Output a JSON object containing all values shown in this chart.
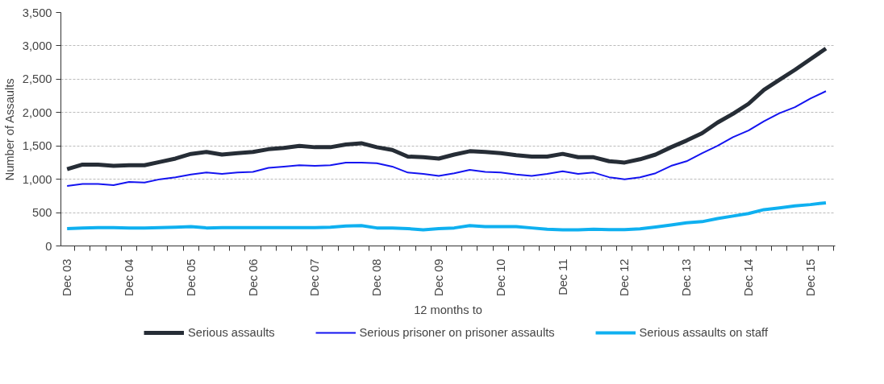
{
  "chart_data": {
    "type": "line",
    "xlabel": "12 months to",
    "ylabel": "Number of Assaults",
    "categories": [
      "Dec 03",
      null,
      null,
      null,
      "Dec 04",
      null,
      null,
      null,
      "Dec 05",
      null,
      null,
      null,
      "Dec 06",
      null,
      null,
      null,
      "Dec 07",
      null,
      null,
      null,
      "Dec 08",
      null,
      null,
      null,
      "Dec 09",
      null,
      null,
      null,
      "Dec 10",
      null,
      null,
      null,
      "Dec 11",
      null,
      null,
      null,
      "Dec 12",
      null,
      null,
      null,
      "Dec 13",
      null,
      null,
      null,
      "Dec 14",
      null,
      null,
      null,
      "Dec 15",
      null
    ],
    "ylim": [
      0,
      3500
    ],
    "yticks": [
      0,
      500,
      {
        "value": 1000,
        "label": "1,000"
      },
      {
        "value": 1500,
        "label": "1,500"
      },
      {
        "value": 2000,
        "label": "2,000"
      },
      {
        "value": 2500,
        "label": "2,500"
      },
      {
        "value": 3000,
        "label": "3,000"
      },
      {
        "value": 3500,
        "label": "3,500"
      }
    ],
    "grid": "y",
    "legend": "bottom",
    "marker": "none",
    "line_style": "solid",
    "series": [
      {
        "name": "Serious assaults",
        "color": "#262d36",
        "values": [
          1150,
          1220,
          1220,
          1200,
          1210,
          1210,
          1260,
          1310,
          1380,
          1410,
          1370,
          1390,
          1410,
          1450,
          1470,
          1500,
          1480,
          1480,
          1520,
          1540,
          1480,
          1440,
          1340,
          1330,
          1310,
          1370,
          1420,
          1410,
          1390,
          1360,
          1340,
          1340,
          1380,
          1330,
          1330,
          1270,
          1250,
          1300,
          1370,
          1480,
          1580,
          1690,
          1850,
          1980,
          2130,
          2340,
          2490,
          2640,
          2800,
          2960
        ]
      },
      {
        "name": "Serious prisoner on prisoner assaults",
        "color": "#1414f0",
        "values": [
          900,
          930,
          930,
          910,
          960,
          950,
          1000,
          1030,
          1070,
          1100,
          1080,
          1100,
          1110,
          1170,
          1190,
          1210,
          1200,
          1210,
          1250,
          1250,
          1240,
          1190,
          1100,
          1080,
          1050,
          1090,
          1140,
          1110,
          1100,
          1070,
          1050,
          1080,
          1120,
          1080,
          1100,
          1030,
          1000,
          1030,
          1090,
          1200,
          1270,
          1390,
          1500,
          1630,
          1730,
          1870,
          1990,
          2080,
          2210,
          2320
        ]
      },
      {
        "name": "Serious assaults on staff",
        "color": "#0fb0f0",
        "values": [
          260,
          270,
          275,
          275,
          270,
          270,
          275,
          280,
          290,
          270,
          275,
          275,
          275,
          275,
          275,
          275,
          275,
          280,
          300,
          305,
          270,
          270,
          260,
          240,
          260,
          270,
          305,
          290,
          290,
          290,
          270,
          250,
          240,
          240,
          250,
          245,
          245,
          256,
          283,
          314,
          348,
          364,
          410,
          448,
          486,
          544,
          570,
          600,
          620,
          647
        ]
      }
    ]
  }
}
